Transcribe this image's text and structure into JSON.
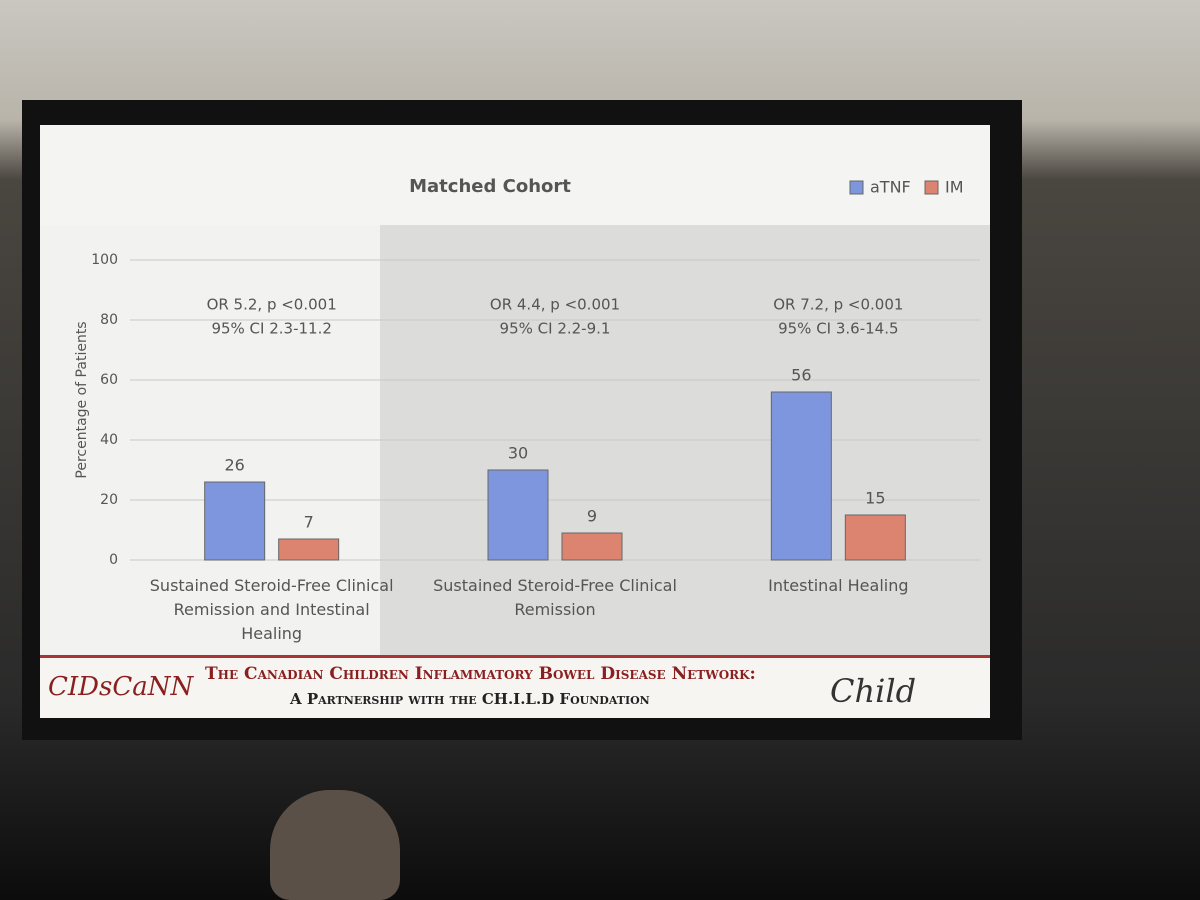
{
  "chart_data": {
    "type": "bar",
    "title": "Matched Cohort",
    "y_label": "Percentage of Patients",
    "categories": [
      "Sustained Steroid-Free Clinical Remission and Intestinal Healing",
      "Sustained Steroid-Free Clinical Remission",
      "Intestinal Healing"
    ],
    "series": [
      {
        "name": "aTNF",
        "color": "#7e96de",
        "values": [
          26,
          30,
          56
        ]
      },
      {
        "name": "IM",
        "color": "#dc8470",
        "values": [
          7,
          9,
          15
        ]
      }
    ],
    "annotations": [
      [
        "OR 5.2, p <0.001",
        "95% CI 2.3-11.2"
      ],
      [
        "OR 4.4, p <0.001",
        "95% CI 2.2-9.1"
      ],
      [
        "OR 7.2, p <0.001",
        "95% CI 3.6-14.5"
      ]
    ],
    "ylim": [
      0,
      100
    ],
    "yticks": [
      0,
      20,
      40,
      60,
      80,
      100
    ],
    "grid": true,
    "legend": "top-right"
  },
  "footer": {
    "logo_left": "CIDsCaNN",
    "line1": "The Canadian Children Inflammatory Bowel Disease Network:",
    "line2": "A Partnership with the CH.I.L.D Foundation",
    "logo_right": "Child"
  }
}
